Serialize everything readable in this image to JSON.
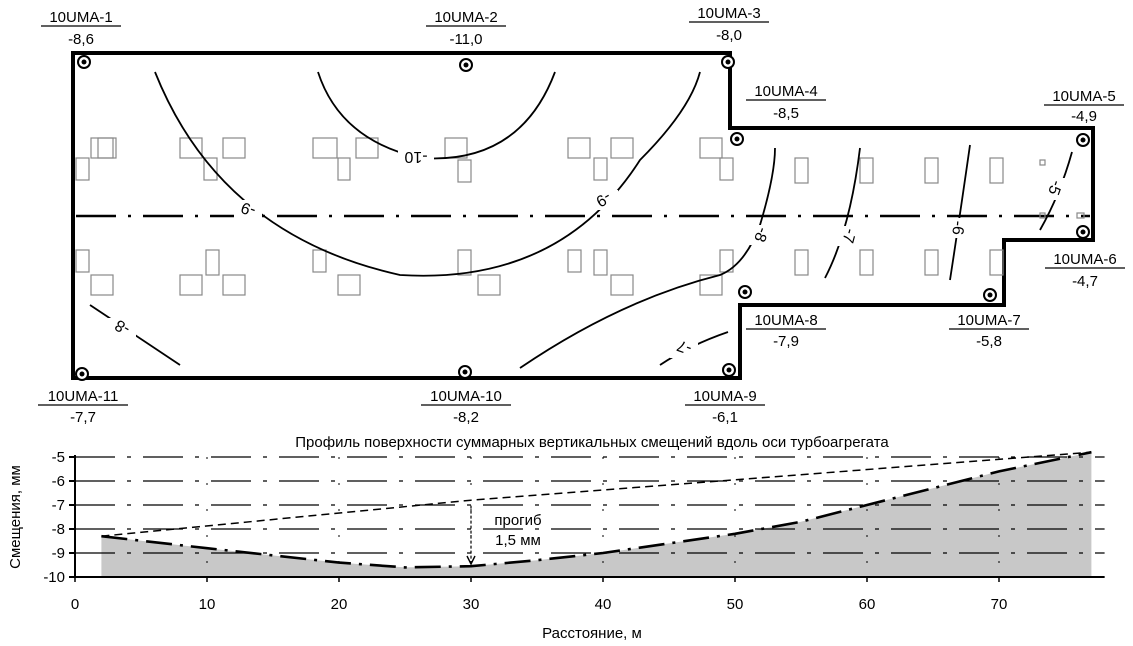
{
  "plan": {
    "points": [
      {
        "id": "10UMA-1",
        "value": "-8,6"
      },
      {
        "id": "10UMA-2",
        "value": "-11,0"
      },
      {
        "id": "10UMA-3",
        "value": "-8,0"
      },
      {
        "id": "10UMA-4",
        "value": "-8,5"
      },
      {
        "id": "10UMA-5",
        "value": "-4,9"
      },
      {
        "id": "10UMA-6",
        "value": "-4,7"
      },
      {
        "id": "10UMA-7",
        "value": "-5,8"
      },
      {
        "id": "10UMA-8",
        "value": "-7,9"
      },
      {
        "id": "10UMA-9",
        "value": "-6,1"
      },
      {
        "id": "10UMA-10",
        "value": "-8,2"
      },
      {
        "id": "10UMA-11",
        "value": "-7,7"
      }
    ],
    "contour_labels": [
      "-10",
      "-9",
      "-9",
      "-8",
      "-8",
      "-7",
      "-7",
      "-6",
      "-5"
    ]
  },
  "chart_data": {
    "type": "area",
    "title": "Профиль поверхности суммарных вертикальных смещений вдоль оси турбоагрегата",
    "xlabel": "Расстояние, м",
    "ylabel": "Смещения, мм",
    "xlim": [
      0,
      78
    ],
    "ylim": [
      -10,
      -5
    ],
    "x_ticks": [
      0,
      10,
      20,
      30,
      40,
      50,
      60,
      70
    ],
    "y_ticks": [
      -5,
      -6,
      -7,
      -8,
      -9,
      -10
    ],
    "grid": true,
    "series": [
      {
        "kind": "profile",
        "x": [
          2,
          10,
          20,
          25,
          30,
          35,
          40,
          45,
          50,
          55,
          60,
          65,
          70,
          77
        ],
        "values": [
          -8.3,
          -8.8,
          -9.4,
          -9.6,
          -9.55,
          -9.3,
          -9.0,
          -8.6,
          -8.2,
          -7.7,
          -7.0,
          -6.3,
          -5.6,
          -4.8
        ]
      },
      {
        "kind": "reference",
        "x": [
          2,
          30,
          77
        ],
        "values": [
          -8.3,
          -6.8,
          -4.8
        ]
      }
    ],
    "annotation": {
      "text_line1": "прогиб",
      "text_line2": "1,5 мм",
      "x": 30
    }
  }
}
